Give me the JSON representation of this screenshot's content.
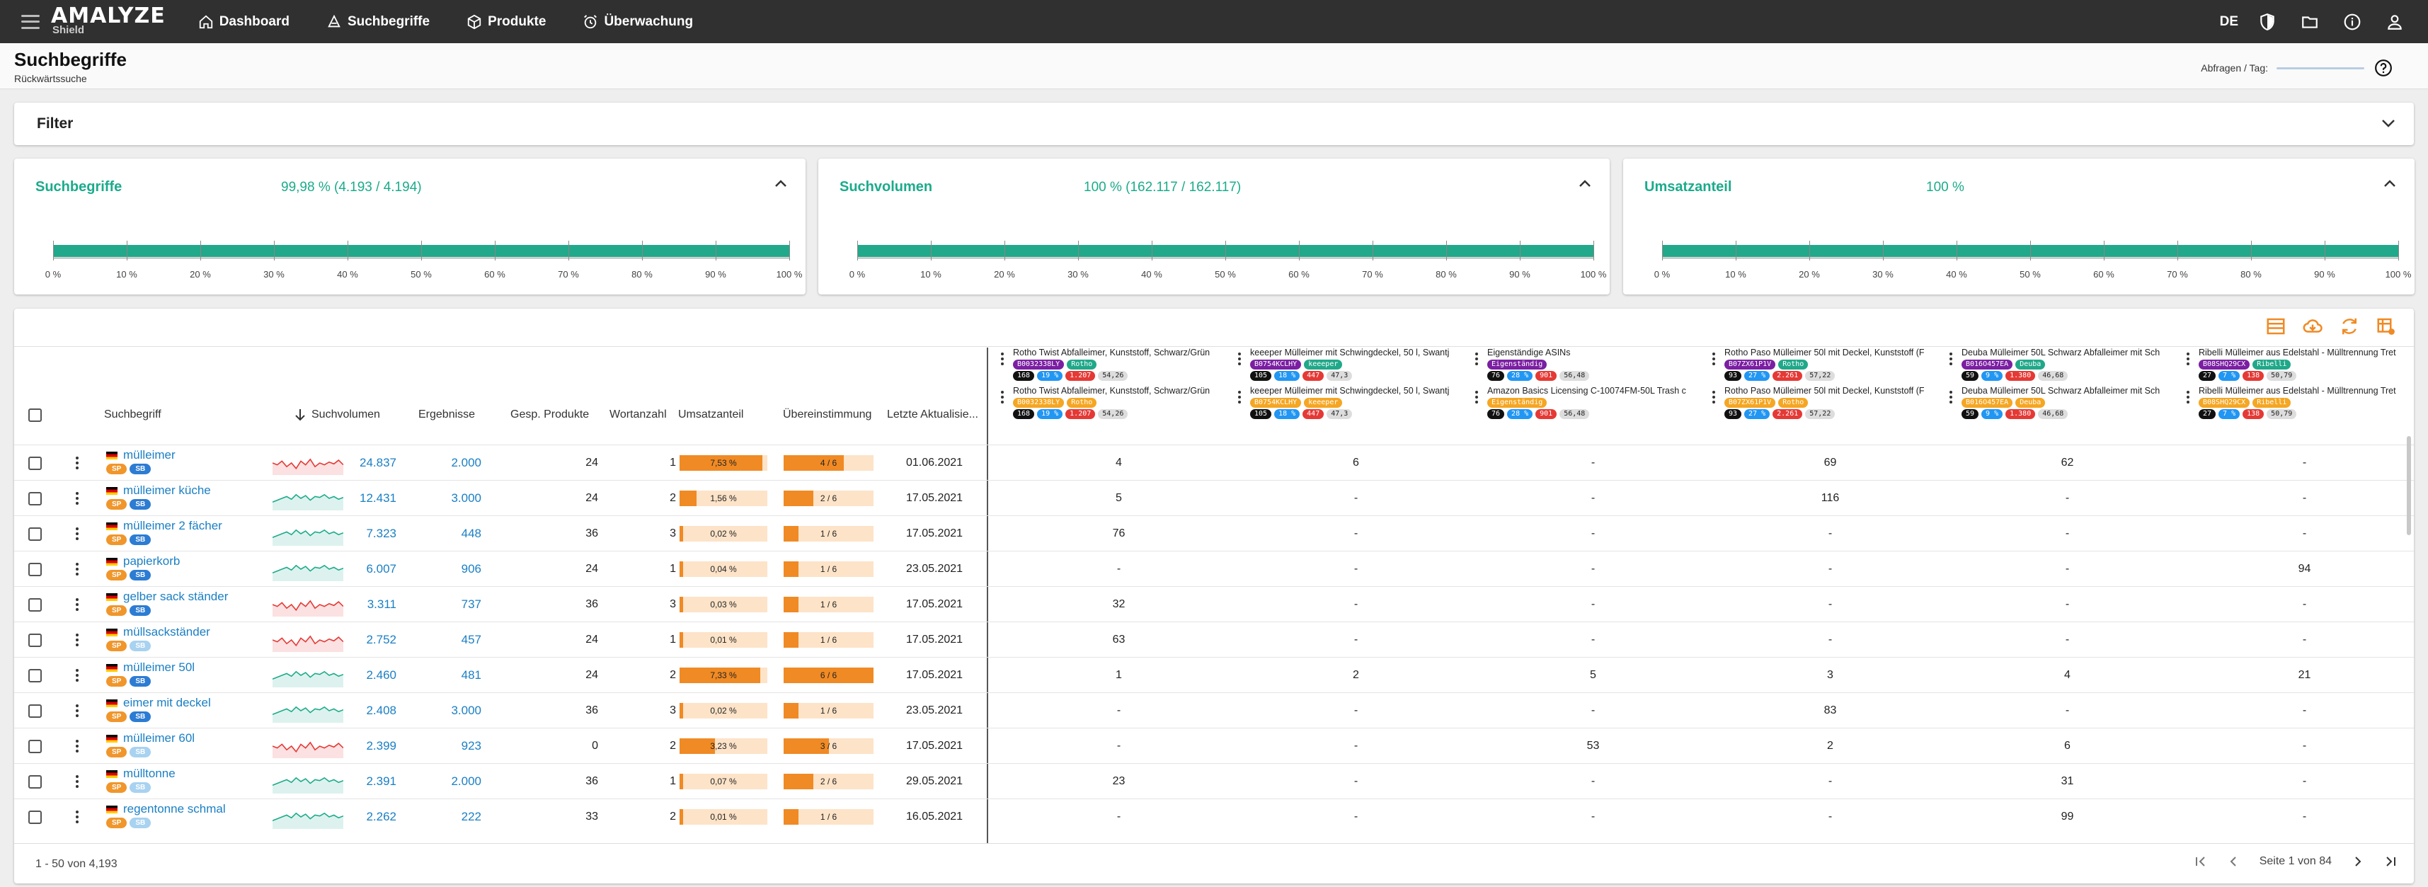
{
  "app": {
    "logo": "AMALYZE",
    "logo_sub": "Shield",
    "lang": "DE"
  },
  "nav": [
    {
      "label": "Dashboard",
      "icon": "home-icon"
    },
    {
      "label": "Suchbegriffe",
      "icon": "search-tag-icon"
    },
    {
      "label": "Produkte",
      "icon": "package-icon"
    },
    {
      "label": "Überwachung",
      "icon": "alarm-icon"
    }
  ],
  "header": {
    "title": "Suchbegriffe",
    "subtitle": "Rückwärtssuche",
    "rate_label": "Abfragen / Tag:"
  },
  "filter": {
    "title": "Filter"
  },
  "kpis": [
    {
      "title": "Suchbegriffe",
      "value": "99,98 % (4.193 / 4.194)",
      "fill_percent": 99.98
    },
    {
      "title": "Suchvolumen",
      "value": "100 % (162.117 / 162.117)",
      "fill_percent": 100
    },
    {
      "title": "Umsatzanteil",
      "value": "100 %",
      "fill_percent": 100
    }
  ],
  "axis_ticks": [
    "0 %",
    "10 %",
    "20 %",
    "30 %",
    "40 %",
    "50 %",
    "60 %",
    "70 %",
    "80 %",
    "90 %",
    "100 %"
  ],
  "columns": {
    "keyword": "Suchbegriff",
    "volume": "Suchvolumen",
    "results": "Ergebnisse",
    "total_products": "Gesp. Produkte",
    "wordcount": "Wortanzahl",
    "share": "Umsatzanteil",
    "match": "Übereinstimmung",
    "updated": "Letzte Aktualisie..."
  },
  "colors": {
    "accent_green": "#1bab8b",
    "link_blue": "#1a7fc4",
    "orange": "#f08a24",
    "topbar": "#303030"
  },
  "asin_headers_top": [
    {
      "name": "Rotho Twist Abfalleimer, Kunststoff, Schwarz/Grün",
      "asin": "B0032338LY",
      "brand": "Rotho",
      "stats": [
        "168",
        "19 %",
        "1.207",
        "54,26"
      ],
      "orange": false
    },
    {
      "name": "keeeper Mülleimer mit Schwingdeckel, 50 l, Swantj",
      "asin": "B0754KCLHY",
      "brand": "keeeper",
      "stats": [
        "105",
        "18 %",
        "447",
        "47,3"
      ],
      "orange": false
    },
    {
      "name": "Eigenständige ASINs",
      "asin": "",
      "brand": "Eigenständig",
      "stats": [
        "76",
        "28 %",
        "901",
        "56,48"
      ],
      "orange": false
    },
    {
      "name": "Rotho Paso Mülleimer 50l mit Deckel, Kunststoff (F",
      "asin": "B07ZX61P1V",
      "brand": "Rotho",
      "stats": [
        "93",
        "27 %",
        "2.261",
        "57,22"
      ],
      "orange": false
    },
    {
      "name": "Deuba Mülleimer 50L Schwarz Abfalleimer mit Sch",
      "asin": "B016O457EA",
      "brand": "Deuba",
      "stats": [
        "59",
        "9 %",
        "1.380",
        "46,68"
      ],
      "orange": false
    },
    {
      "name": "Ribelli Mülleimer aus Edelstahl - Mülltrennung Tret",
      "asin": "B08SHQ29CX",
      "brand": "Ribelli",
      "stats": [
        "27",
        "7 %",
        "138",
        "50,79"
      ],
      "orange": false
    }
  ],
  "asin_headers_bottom": [
    {
      "name": "Rotho Twist Abfalleimer, Kunststoff, Schwarz/Grün",
      "asin": "B0032338LY",
      "brand": "Rotho",
      "stats": [
        "168",
        "19 %",
        "1.207",
        "54,26"
      ],
      "orange": true
    },
    {
      "name": "keeeper Mülleimer mit Schwingdeckel, 50 l, Swantj",
      "asin": "B0754KCLHY",
      "brand": "keeeper",
      "stats": [
        "105",
        "18 %",
        "447",
        "47,3"
      ],
      "orange": true
    },
    {
      "name": "Amazon Basics Licensing C-10074FM-50L Trash c",
      "asin": "",
      "brand": "Eigenständig",
      "stats": [
        "76",
        "28 %",
        "901",
        "56,48"
      ],
      "orange": true
    },
    {
      "name": "Rotho Paso Mülleimer 50l mit Deckel, Kunststoff (F",
      "asin": "B07ZX61P1V",
      "brand": "Rotho",
      "stats": [
        "93",
        "27 %",
        "2.261",
        "57,22"
      ],
      "orange": true
    },
    {
      "name": "Deuba Mülleimer 50L Schwarz Abfalleimer mit Sch",
      "asin": "B016O457EA",
      "brand": "Deuba",
      "stats": [
        "59",
        "9 %",
        "1.380",
        "46,68"
      ],
      "orange": true
    },
    {
      "name": "Ribelli Mülleimer aus Edelstahl - Mülltrennung Tret",
      "asin": "B08SHQ29CX",
      "brand": "Ribelli",
      "stats": [
        "27",
        "7 %",
        "138",
        "50,79"
      ],
      "orange": true
    }
  ],
  "rows": [
    {
      "kw": "mülleimer",
      "vol": "24.837",
      "res": "2.000",
      "tot": "24",
      "wc": "1",
      "share": "7,53 %",
      "share_val": 7.53,
      "match": "4 / 6",
      "match_val": 4,
      "date": "01.06.2021",
      "trend": "red",
      "sb_light": false,
      "pos": [
        "4",
        "6",
        "-",
        "69",
        "62",
        "-"
      ]
    },
    {
      "kw": "mülleimer küche",
      "vol": "12.431",
      "res": "3.000",
      "tot": "24",
      "wc": "2",
      "share": "1,56 %",
      "share_val": 1.56,
      "match": "2 / 6",
      "match_val": 2,
      "date": "17.05.2021",
      "trend": "green",
      "sb_light": false,
      "pos": [
        "5",
        "-",
        "-",
        "116",
        "-",
        "-"
      ]
    },
    {
      "kw": "mülleimer 2 fächer",
      "vol": "7.323",
      "res": "448",
      "tot": "36",
      "wc": "3",
      "share": "0,02 %",
      "share_val": 0.02,
      "match": "1 / 6",
      "match_val": 1,
      "date": "17.05.2021",
      "trend": "green",
      "sb_light": false,
      "pos": [
        "76",
        "-",
        "-",
        "-",
        "-",
        "-"
      ]
    },
    {
      "kw": "papierkorb",
      "vol": "6.007",
      "res": "906",
      "tot": "24",
      "wc": "1",
      "share": "0,04 %",
      "share_val": 0.04,
      "match": "1 / 6",
      "match_val": 1,
      "date": "23.05.2021",
      "trend": "green",
      "sb_light": false,
      "pos": [
        "-",
        "-",
        "-",
        "-",
        "-",
        "94"
      ]
    },
    {
      "kw": "gelber sack ständer",
      "vol": "3.311",
      "res": "737",
      "tot": "36",
      "wc": "3",
      "share": "0,03 %",
      "share_val": 0.03,
      "match": "1 / 6",
      "match_val": 1,
      "date": "17.05.2021",
      "trend": "red",
      "sb_light": false,
      "pos": [
        "32",
        "-",
        "-",
        "-",
        "-",
        "-"
      ]
    },
    {
      "kw": "müllsackständer",
      "vol": "2.752",
      "res": "457",
      "tot": "24",
      "wc": "1",
      "share": "0,01 %",
      "share_val": 0.01,
      "match": "1 / 6",
      "match_val": 1,
      "date": "17.05.2021",
      "trend": "red",
      "sb_light": true,
      "pos": [
        "63",
        "-",
        "-",
        "-",
        "-",
        "-"
      ]
    },
    {
      "kw": "mülleimer 50l",
      "vol": "2.460",
      "res": "481",
      "tot": "24",
      "wc": "2",
      "share": "7,33 %",
      "share_val": 7.33,
      "match": "6 / 6",
      "match_val": 6,
      "date": "17.05.2021",
      "trend": "green",
      "sb_light": false,
      "pos": [
        "1",
        "2",
        "5",
        "3",
        "4",
        "21"
      ]
    },
    {
      "kw": "eimer mit deckel",
      "vol": "2.408",
      "res": "3.000",
      "tot": "36",
      "wc": "3",
      "share": "0,02 %",
      "share_val": 0.02,
      "match": "1 / 6",
      "match_val": 1,
      "date": "23.05.2021",
      "trend": "green",
      "sb_light": false,
      "pos": [
        "-",
        "-",
        "-",
        "83",
        "-",
        "-"
      ]
    },
    {
      "kw": "mülleimer 60l",
      "vol": "2.399",
      "res": "923",
      "tot": "0",
      "wc": "2",
      "share": "3,23 %",
      "share_val": 3.23,
      "match": "3 / 6",
      "match_val": 3,
      "date": "17.05.2021",
      "trend": "red",
      "sb_light": true,
      "pos": [
        "-",
        "-",
        "53",
        "2",
        "6",
        "-"
      ]
    },
    {
      "kw": "mülltonne",
      "vol": "2.391",
      "res": "2.000",
      "tot": "36",
      "wc": "1",
      "share": "0,07 %",
      "share_val": 0.07,
      "match": "2 / 6",
      "match_val": 2,
      "date": "29.05.2021",
      "trend": "green",
      "sb_light": true,
      "pos": [
        "23",
        "-",
        "-",
        "-",
        "31",
        "-"
      ]
    },
    {
      "kw": "regentonne schmal",
      "vol": "2.262",
      "res": "222",
      "tot": "33",
      "wc": "2",
      "share": "0,01 %",
      "share_val": 0.01,
      "match": "1 / 6",
      "match_val": 1,
      "date": "16.05.2021",
      "trend": "green",
      "sb_light": true,
      "pos": [
        "-",
        "-",
        "-",
        "-",
        "99",
        "-"
      ]
    }
  ],
  "footer": {
    "range": "1 - 50 von 4,193",
    "page": "Seite 1 von 84"
  }
}
